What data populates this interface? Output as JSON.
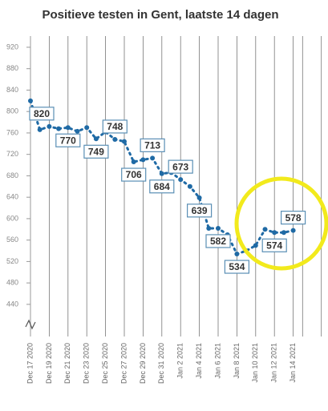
{
  "chart_data": {
    "type": "line",
    "title": "Positieve testen in Gent, laatste 14 dagen",
    "categories": [
      "Dec 17 2020",
      null,
      "Dec 19 2020",
      null,
      "Dec 21 2020",
      null,
      "Dec 23 2020",
      null,
      "Dec 25 2020",
      null,
      "Dec 27 2020",
      null,
      "Dec 29 2020",
      null,
      "Dec 31 2020",
      null,
      "Jan 2 2021",
      null,
      "Jan 4 2021",
      null,
      "Jan 6 2021",
      null,
      "Jan 8 2021",
      null,
      "Jan 10 2021",
      null,
      "Jan 12 2021",
      null,
      "Jan 14 2021"
    ],
    "values": [
      820,
      766,
      772,
      768,
      770,
      763,
      770,
      749,
      762,
      748,
      744,
      706,
      710,
      713,
      684,
      686,
      673,
      660,
      639,
      582,
      582,
      570,
      534,
      540,
      550,
      580,
      574,
      574,
      578
    ],
    "value_labels": [
      "820",
      null,
      null,
      null,
      "770",
      null,
      null,
      "749",
      null,
      "748",
      null,
      "706",
      null,
      "713",
      "684",
      null,
      "673",
      null,
      "639",
      null,
      "582",
      null,
      "534",
      null,
      null,
      null,
      "574",
      null,
      "578"
    ],
    "color": "#1f6aa5",
    "ylim": [
      380,
      940
    ],
    "yticks": [
      440,
      480,
      520,
      560,
      600,
      640,
      680,
      720,
      760,
      800,
      840,
      880,
      920
    ]
  }
}
